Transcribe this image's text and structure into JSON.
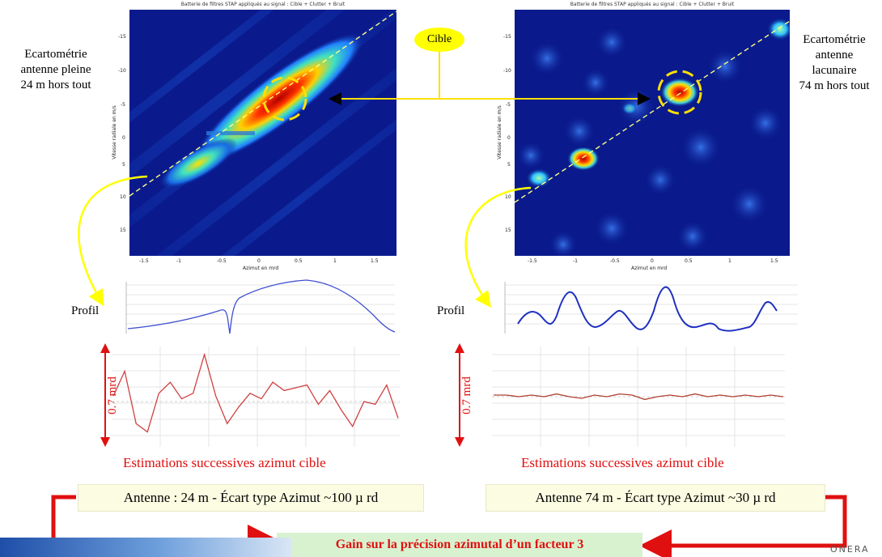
{
  "left_panel": {
    "heatmap_title": "Batterie de filtres STAP appliqués au signal : Cible + Clutter + Bruit",
    "label_lines": [
      "Ecartométrie",
      "antenne pleine",
      "24 m hors tout"
    ],
    "y_axis_label": "Vitesse radiale en m/s",
    "x_axis_label": "Azimut en mrd",
    "x_ticks": [
      "-1.5",
      "-1",
      "-0.5",
      "0",
      "0.5",
      "1",
      "1.5"
    ],
    "y_ticks": [
      "-15",
      "-10",
      "-5",
      "0",
      "5",
      "10",
      "15"
    ]
  },
  "right_panel": {
    "heatmap_title": "Batterie de filtres STAP appliqués au signal : Cible + Clutter + Bruit",
    "label_lines": [
      "Ecartométrie",
      "antenne",
      "lacunaire",
      "74 m hors tout"
    ],
    "y_axis_label": "Vitesse radiale en m/s",
    "x_axis_label": "Azimut en mrd",
    "x_ticks": [
      "-1.5",
      "-1",
      "-0.5",
      "0",
      "0.5",
      "1",
      "1.5"
    ],
    "y_ticks": [
      "-15",
      "-10",
      "-5",
      "0",
      "5",
      "10",
      "15"
    ]
  },
  "cible_label": "Cible",
  "profil_label": "Profil",
  "vertical_label": "0.7 mrd",
  "estimations_caption": "Estimations successives azimut cible",
  "left_result": "Antenne : 24 m - Écart type Azimut ~100 µ rd",
  "right_result": "Antenne 74 m - Écart type Azimut ~30 µ rd",
  "gain_text": "Gain sur la précision azimutal d’un facteur 3",
  "logo_text": "ONERA",
  "colors": {
    "accent_red": "#e01010",
    "yellow": "#ffff00",
    "heatmap_bg": "#0a1a8c",
    "box_bg": "#fbfce2",
    "gain_bg": "#d8f2d0"
  },
  "estimation_series": {
    "left": [
      0.1,
      0.55,
      -0.4,
      -0.55,
      0.15,
      0.35,
      0.05,
      0.15,
      0.85,
      0.1,
      -0.4,
      -0.1,
      0.15,
      0.05,
      0.35,
      0.2,
      0.25,
      0.3,
      -0.05,
      0.2,
      -0.15,
      -0.45,
      0.0,
      -0.05,
      0.3,
      -0.3
    ],
    "right": [
      0.03,
      0.03,
      0.0,
      0.03,
      0.0,
      0.05,
      0.0,
      -0.03,
      0.03,
      0.0,
      0.05,
      0.03,
      -0.05,
      0.0,
      0.03,
      0.0,
      0.05,
      0.0,
      0.03,
      0.0,
      0.03,
      0.0,
      0.03,
      0.0
    ]
  }
}
